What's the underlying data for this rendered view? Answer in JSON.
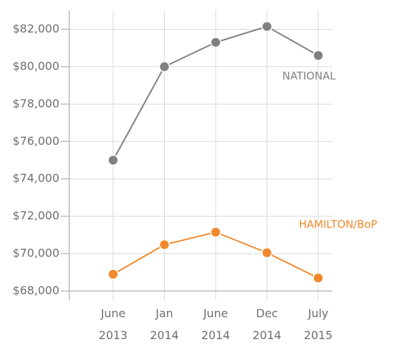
{
  "chart_data": {
    "type": "line",
    "categories": [
      "June 2013",
      "Jan 2014",
      "June 2014",
      "Dec 2014",
      "July 2015"
    ],
    "series": [
      {
        "name": "NATIONAL",
        "color": "#808083",
        "values": [
          75000,
          80000,
          81300,
          82150,
          80600
        ]
      },
      {
        "name": "HAMILTON/BoP",
        "color": "#f0892c",
        "values": [
          68900,
          70480,
          71150,
          70050,
          68700
        ]
      }
    ],
    "ylim": [
      68000,
      83000
    ],
    "yticks": [
      {
        "value": 68000,
        "label": "$68,000"
      },
      {
        "value": 70000,
        "label": "$70,000"
      },
      {
        "value": 72000,
        "label": "$72,000"
      },
      {
        "value": 74000,
        "label": "$74,000"
      },
      {
        "value": 76000,
        "label": "$76,000"
      },
      {
        "value": 78000,
        "label": "$78,000"
      },
      {
        "value": 80000,
        "label": "$80,000"
      },
      {
        "value": 82000,
        "label": "$82,000"
      }
    ],
    "grid": true
  }
}
